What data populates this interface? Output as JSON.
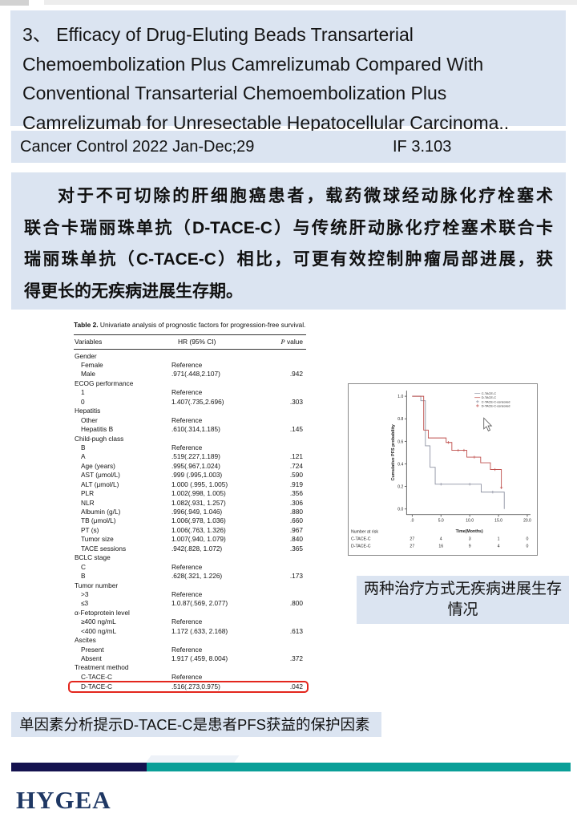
{
  "slide": {
    "title": {
      "lines": [
        "3、 Efficacy of Drug-Eluting Beads Transarterial",
        "Chemoembolization Plus Camrelizumab Compared With",
        "Conventional Transarterial Chemoembolization Plus",
        "Camrelizumab for Unresectable Hepatocellular Carcinoma.."
      ]
    },
    "journal": {
      "name": "Cancer Control 2022 Jan-Dec;29",
      "impact_factor": "IF 3.103"
    },
    "abstract_lines": [
      "对于不可切除的肝细胞癌患者，载药微球经动脉化疗栓塞术",
      "联合卡瑞丽珠单抗（D-TACE-C）与传统肝动脉化疗栓塞术联合卡",
      "瑞丽珠单抗（C-TACE-C）相比，可更有效控制肿瘤局部进展，获",
      "得更长的无疾病进展生存期。"
    ],
    "table": {
      "title_bold": "Table 2.",
      "title_rest": " Univariate analysis of prognostic factors for progression-free survival.",
      "headers": {
        "variable": "Variables",
        "hr": "HR (95% CI)",
        "p_italic": "P",
        "p_rest": " value"
      },
      "rows": [
        {
          "label": "Gender",
          "hr": "",
          "p": "",
          "indent": false
        },
        {
          "label": "Female",
          "hr": "Reference",
          "p": "",
          "indent": true
        },
        {
          "label": "Male",
          "hr": ".971(.448,2.107)",
          "p": ".942",
          "indent": true
        },
        {
          "label": "ECOG performance",
          "hr": "",
          "p": "",
          "indent": false
        },
        {
          "label": "1",
          "hr": "Reference",
          "p": "",
          "indent": true
        },
        {
          "label": "0",
          "hr": "1.407(.735,2.696)",
          "p": ".303",
          "indent": true
        },
        {
          "label": "Hepatitis",
          "hr": "",
          "p": "",
          "indent": false
        },
        {
          "label": "Other",
          "hr": "Reference",
          "p": "",
          "indent": true
        },
        {
          "label": "Hepatitis B",
          "hr": ".610(.314,1.185)",
          "p": ".145",
          "indent": true
        },
        {
          "label": "Child-pugh class",
          "hr": "",
          "p": "",
          "indent": false
        },
        {
          "label": "B",
          "hr": "Reference",
          "p": "",
          "indent": true
        },
        {
          "label": "A",
          "hr": ".519(.227,1.189)",
          "p": ".121",
          "indent": true
        },
        {
          "label": "Age (years)",
          "hr": ".995(.967,1.024)",
          "p": ".724",
          "indent": true
        },
        {
          "label": "AST (μmol/L)",
          "hr": ".999 (.995,1.003)",
          "p": ".590",
          "indent": true
        },
        {
          "label": "ALT (μmol/L)",
          "hr": "1.000 (.995, 1.005)",
          "p": ".919",
          "indent": true
        },
        {
          "label": "PLR",
          "hr": "1.002(.998, 1.005)",
          "p": ".356",
          "indent": true
        },
        {
          "label": "NLR",
          "hr": "1.082(.931, 1.257)",
          "p": ".306",
          "indent": true
        },
        {
          "label": "Albumin (g/L)",
          "hr": ".996(.949, 1.046)",
          "p": ".880",
          "indent": true
        },
        {
          "label": "TB (μmol/L)",
          "hr": "1.006(.978, 1.036)",
          "p": ".660",
          "indent": true
        },
        {
          "label": "PT (s)",
          "hr": "1.006(.763, 1.326)",
          "p": ".967",
          "indent": true
        },
        {
          "label": "Tumor size",
          "hr": "1.007(.940, 1.079)",
          "p": ".840",
          "indent": true
        },
        {
          "label": "TACE sessions",
          "hr": ".942(.828, 1.072)",
          "p": ".365",
          "indent": true
        },
        {
          "label": "BCLC stage",
          "hr": "",
          "p": "",
          "indent": false
        },
        {
          "label": "C",
          "hr": "Reference",
          "p": "",
          "indent": true
        },
        {
          "label": "B",
          "hr": ".628(.321, 1.226)",
          "p": ".173",
          "indent": true
        },
        {
          "label": "Tumor number",
          "hr": "",
          "p": "",
          "indent": false
        },
        {
          "label": ">3",
          "hr": "Reference",
          "p": "",
          "indent": true
        },
        {
          "label": "≤3",
          "hr": "1.0.87(.569, 2.077)",
          "p": ".800",
          "indent": true
        },
        {
          "label": "α-Fetoprotein level",
          "hr": "",
          "p": "",
          "indent": false
        },
        {
          "label": "≥400 ng/mL",
          "hr": "Reference",
          "p": "",
          "indent": true
        },
        {
          "label": "<400 ng/mL",
          "hr": "1.172 (.633, 2.168)",
          "p": ".613",
          "indent": true
        },
        {
          "label": "Ascites",
          "hr": "",
          "p": "",
          "indent": false
        },
        {
          "label": "Present",
          "hr": "Reference",
          "p": "",
          "indent": true
        },
        {
          "label": "Absent",
          "hr": "1.917 (.459, 8.004)",
          "p": ".372",
          "indent": true
        },
        {
          "label": "Treatment method",
          "hr": "",
          "p": "",
          "indent": false
        },
        {
          "label": "C-TACE-C",
          "hr": "Reference",
          "p": "",
          "indent": true,
          "rule": true
        },
        {
          "label": "D-TACE-C",
          "hr": ".516(.273,0.975)",
          "p": ".042",
          "indent": true,
          "highlight": true
        }
      ]
    },
    "figure_caption": "两种治疗方式无疾病进展生存情况",
    "note": "单因素分析提示D-TACE-C是患者PFS获益的保护因素",
    "logo": "HYGEA",
    "colors": {
      "box_bg": "#dbe4f1",
      "navy_bar": "#14124f",
      "teal_bar": "#0a9f98",
      "logo_navy": "#1f3864",
      "highlight_red": "#e3261d"
    }
  },
  "chart_data": {
    "type": "line",
    "subtype": "kaplan-meier",
    "title": "",
    "xlabel": "Time(Months)",
    "ylabel": "Cumulative PFS probability",
    "xlim": [
      -1,
      21
    ],
    "ylim": [
      0,
      1.05
    ],
    "xticks": [
      0,
      5,
      10,
      15,
      20
    ],
    "xtick_labels": [
      ".0",
      "5.0",
      "10.0",
      "15.0",
      "20.0"
    ],
    "yticks": [
      0.0,
      0.2,
      0.4,
      0.6,
      0.8,
      1.0
    ],
    "legend": [
      "C-TACE-C",
      "D-TACE-C",
      "C-TACE-C-censored",
      "D-TACE-C-censored"
    ],
    "legend_position": "upper right",
    "grid": false,
    "series": [
      {
        "name": "C-TACE-C",
        "color": "#8f93a3",
        "steps": [
          [
            0,
            1.0
          ],
          [
            1.5,
            0.96
          ],
          [
            2.3,
            0.56
          ],
          [
            3.1,
            0.37
          ],
          [
            4,
            0.22
          ],
          [
            12,
            0.15
          ],
          [
            16,
            0.0
          ]
        ],
        "censored": [
          [
            5,
            0.22
          ],
          [
            10,
            0.22
          ],
          [
            14,
            0.15
          ]
        ]
      },
      {
        "name": "D-TACE-C",
        "color": "#bf4f4c",
        "steps": [
          [
            0,
            1.0
          ],
          [
            2,
            0.7
          ],
          [
            2.8,
            0.63
          ],
          [
            5.9,
            0.59
          ],
          [
            6.9,
            0.52
          ],
          [
            9.5,
            0.46
          ],
          [
            11.9,
            0.41
          ],
          [
            13.6,
            0.35
          ],
          [
            15.5,
            0.18
          ]
        ],
        "censored": [
          [
            6.3,
            0.59
          ],
          [
            8,
            0.52
          ],
          [
            9,
            0.52
          ],
          [
            10.8,
            0.46
          ],
          [
            14.4,
            0.35
          ],
          [
            15.5,
            0.19
          ]
        ]
      }
    ],
    "number_at_risk": {
      "label": "Number at risk",
      "times": [
        0,
        5,
        10,
        15,
        20
      ],
      "rows": [
        {
          "name": "C-TACE-C",
          "values": [
            27,
            4,
            3,
            1,
            0
          ]
        },
        {
          "name": "D-TACE-C",
          "values": [
            27,
            16,
            9,
            4,
            0
          ]
        }
      ]
    }
  }
}
